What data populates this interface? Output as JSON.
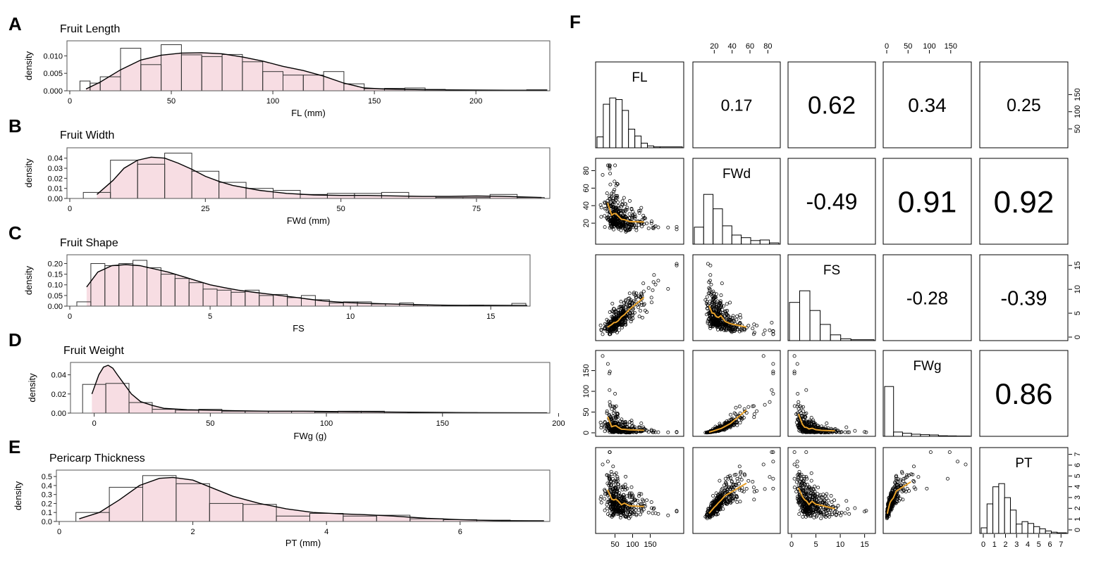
{
  "panel_letters": [
    "A",
    "B",
    "C",
    "D",
    "E",
    "F"
  ],
  "chart_data": [
    {
      "type": "bar",
      "letter": "A",
      "title": "Fruit Length",
      "xlabel": "FL (mm)",
      "ylabel": "density",
      "xlim": [
        0,
        235
      ],
      "ylim": [
        0,
        0.0135
      ],
      "xticks": [
        0,
        50,
        100,
        150,
        200
      ],
      "yticks": [
        0,
        0.005,
        0.01
      ],
      "ytick_labels": [
        "0.000",
        "0.005",
        "0.010"
      ],
      "bin_edges": [
        5,
        10,
        15,
        25,
        35,
        45,
        55,
        65,
        75,
        85,
        95,
        105,
        115,
        125,
        135,
        145,
        155,
        165,
        175,
        185,
        195,
        205,
        215,
        225,
        235
      ],
      "values": [
        0.0028,
        0.0022,
        0.004,
        0.0122,
        0.0075,
        0.0132,
        0.0103,
        0.0098,
        0.0104,
        0.0083,
        0.0055,
        0.0045,
        0.0045,
        0.0055,
        0.002,
        0.0006,
        0.0007,
        0.0008,
        0.0004,
        0.0002,
        0.0001,
        0.0002,
        0.0002,
        0.0003
      ],
      "density": {
        "x": [
          8,
          15,
          25,
          35,
          45,
          55,
          65,
          75,
          85,
          95,
          105,
          115,
          125,
          135,
          145,
          155,
          175,
          200,
          235
        ],
        "y": [
          0.0005,
          0.0025,
          0.006,
          0.0088,
          0.0102,
          0.0108,
          0.0109,
          0.0106,
          0.0097,
          0.0085,
          0.007,
          0.0058,
          0.0042,
          0.0022,
          0.0008,
          0.0005,
          0.0003,
          0.0002,
          0.0001
        ]
      }
    },
    {
      "type": "bar",
      "letter": "B",
      "title": "Fruit Width",
      "xlabel": "FWd (mm)",
      "ylabel": "density",
      "xlim": [
        0,
        88
      ],
      "ylim": [
        0,
        0.0475
      ],
      "xticks": [
        0,
        25,
        50,
        75
      ],
      "yticks": [
        0,
        0.01,
        0.02,
        0.03,
        0.04
      ],
      "ytick_labels": [
        "0.00",
        "0.01",
        "0.02",
        "0.03",
        "0.04"
      ],
      "bin_edges": [
        2.5,
        7.5,
        12.5,
        17.5,
        22.5,
        27.5,
        32.5,
        37.5,
        42.5,
        47.5,
        52.5,
        57.5,
        62.5,
        67.5,
        72.5,
        77.5,
        82.5,
        87.5
      ],
      "values": [
        0.006,
        0.038,
        0.034,
        0.045,
        0.027,
        0.016,
        0.01,
        0.008,
        0.004,
        0.005,
        0.005,
        0.006,
        0.002,
        0.001,
        0.001,
        0.004,
        0.001
      ],
      "density": {
        "x": [
          5,
          8,
          10,
          12.5,
          15,
          17.5,
          20,
          22.5,
          25,
          27.5,
          30,
          35,
          40,
          45,
          50,
          55,
          60,
          65,
          70,
          75,
          80,
          87
        ],
        "y": [
          0.004,
          0.018,
          0.03,
          0.038,
          0.041,
          0.04,
          0.035,
          0.029,
          0.022,
          0.017,
          0.013,
          0.008,
          0.005,
          0.0035,
          0.003,
          0.003,
          0.0025,
          0.002,
          0.002,
          0.0025,
          0.002,
          0.001
        ]
      }
    },
    {
      "type": "bar",
      "letter": "C",
      "title": "Fruit Shape",
      "xlabel": "FS",
      "ylabel": "density",
      "xlim": [
        0,
        16.3
      ],
      "ylim": [
        0,
        0.228
      ],
      "xticks": [
        0,
        5,
        10,
        15
      ],
      "yticks": [
        0,
        0.05,
        0.1,
        0.15,
        0.2
      ],
      "ytick_labels": [
        "0.00",
        "0.05",
        "0.10",
        "0.15",
        "0.20"
      ],
      "bin_edges": [
        0.25,
        0.75,
        1.25,
        1.75,
        2.25,
        2.75,
        3.25,
        3.75,
        4.25,
        4.75,
        5.25,
        5.75,
        6.25,
        6.75,
        7.25,
        7.75,
        8.25,
        8.75,
        9.25,
        9.75,
        10.25,
        10.75,
        11.25,
        11.75,
        12.25,
        12.75,
        13.25,
        13.75,
        14.25,
        14.75,
        15.25,
        15.75,
        16.25
      ],
      "values": [
        0.02,
        0.2,
        0.19,
        0.2,
        0.215,
        0.18,
        0.15,
        0.13,
        0.11,
        0.08,
        0.075,
        0.065,
        0.075,
        0.05,
        0.055,
        0.04,
        0.05,
        0.03,
        0.015,
        0.02,
        0.02,
        0.01,
        0.01,
        0.015,
        0.005,
        0.005,
        0.003,
        0.003,
        0.005,
        0.003,
        0.002,
        0.013
      ],
      "density": {
        "x": [
          0.6,
          1,
          1.5,
          2,
          2.5,
          3,
          3.5,
          4,
          4.5,
          5,
          5.5,
          6,
          6.5,
          7,
          7.5,
          8,
          8.5,
          9,
          9.5,
          10,
          11,
          12,
          13,
          14,
          15,
          16.3
        ],
        "y": [
          0.09,
          0.16,
          0.19,
          0.195,
          0.19,
          0.175,
          0.16,
          0.14,
          0.12,
          0.1,
          0.087,
          0.075,
          0.066,
          0.058,
          0.05,
          0.042,
          0.033,
          0.025,
          0.02,
          0.016,
          0.012,
          0.008,
          0.005,
          0.004,
          0.004,
          0.003
        ]
      }
    },
    {
      "type": "bar",
      "letter": "D",
      "title": "Fruit Weight",
      "xlabel": "FWg (g)",
      "ylabel": "density",
      "xlim": [
        -9,
        195
      ],
      "ylim": [
        0,
        0.05
      ],
      "xticks": [
        0,
        50,
        100,
        150,
        200
      ],
      "yticks": [
        0,
        0.02,
        0.04
      ],
      "ytick_labels": [
        "0.00",
        "0.02",
        "0.04"
      ],
      "bin_edges": [
        -5,
        5,
        15,
        25,
        35,
        45,
        55,
        65,
        75,
        85,
        95,
        105,
        115,
        125,
        135,
        145,
        155,
        165,
        175,
        185,
        195
      ],
      "values": [
        0.03,
        0.031,
        0.011,
        0.004,
        0.003,
        0.004,
        0.002,
        0.002,
        0.002,
        0.002,
        0.001,
        0.002,
        0.002,
        0.001,
        0.0005,
        0.0005,
        0.0005,
        0.0003,
        0.0003,
        0.0003
      ],
      "density": {
        "x": [
          -1,
          2,
          4,
          6,
          8,
          10,
          13,
          16,
          20,
          25,
          30,
          40,
          50,
          60,
          75,
          90,
          110,
          130,
          160,
          195
        ],
        "y": [
          0.02,
          0.04,
          0.048,
          0.05,
          0.047,
          0.04,
          0.03,
          0.02,
          0.012,
          0.008,
          0.005,
          0.0035,
          0.003,
          0.0025,
          0.002,
          0.002,
          0.0015,
          0.001,
          0.0005,
          0.0003
        ]
      }
    },
    {
      "type": "bar",
      "letter": "E",
      "title": "Pericarp Thickness",
      "xlabel": "PT (mm)",
      "ylabel": "density",
      "xlim": [
        0,
        7.3
      ],
      "ylim": [
        0,
        0.54
      ],
      "xticks": [
        0,
        2,
        4,
        6
      ],
      "yticks": [
        0,
        0.1,
        0.2,
        0.3,
        0.4,
        0.5
      ],
      "ytick_labels": [
        "0.0",
        "0.1",
        "0.2",
        "0.3",
        "0.4",
        "0.5"
      ],
      "bin_edges": [
        0.25,
        0.75,
        1.25,
        1.75,
        2.25,
        2.75,
        3.25,
        3.75,
        4.25,
        4.75,
        5.25,
        5.75,
        6.25,
        6.75,
        7.25
      ],
      "values": [
        0.1,
        0.38,
        0.51,
        0.42,
        0.2,
        0.19,
        0.06,
        0.09,
        0.06,
        0.07,
        0.03,
        0.02,
        0.015,
        0.01
      ],
      "density": {
        "x": [
          0.3,
          0.6,
          0.9,
          1.2,
          1.5,
          1.7,
          2.0,
          2.3,
          2.6,
          3.0,
          3.4,
          3.8,
          4.2,
          4.6,
          5.0,
          5.5,
          6.0,
          6.5,
          7.25
        ],
        "y": [
          0.03,
          0.1,
          0.24,
          0.4,
          0.48,
          0.49,
          0.46,
          0.37,
          0.28,
          0.2,
          0.14,
          0.1,
          0.085,
          0.075,
          0.06,
          0.035,
          0.02,
          0.01,
          0.005
        ]
      }
    },
    {
      "type": "scatter",
      "letter": "F",
      "description": "scatterplot matrix",
      "variables": [
        "FL",
        "FWd",
        "FS",
        "FWg",
        "PT"
      ],
      "ranges": [
        [
          5,
          235
        ],
        [
          0,
          90
        ],
        [
          0,
          16.5
        ],
        [
          0,
          190
        ],
        [
          0,
          7.3
        ]
      ],
      "correlations": [
        {
          "row": 0,
          "col": 1,
          "label": "0.17",
          "value": 0.17
        },
        {
          "row": 0,
          "col": 2,
          "label": "0.62",
          "value": 0.62
        },
        {
          "row": 0,
          "col": 3,
          "label": "0.34",
          "value": 0.34
        },
        {
          "row": 0,
          "col": 4,
          "label": "0.25",
          "value": 0.25
        },
        {
          "row": 1,
          "col": 2,
          "label": "-0.49",
          "value": -0.49
        },
        {
          "row": 1,
          "col": 3,
          "label": "0.91",
          "value": 0.91
        },
        {
          "row": 1,
          "col": 4,
          "label": "0.92",
          "value": 0.92
        },
        {
          "row": 2,
          "col": 3,
          "label": "-0.28",
          "value": -0.28
        },
        {
          "row": 2,
          "col": 4,
          "label": "-0.39",
          "value": -0.39
        },
        {
          "row": 3,
          "col": 4,
          "label": "0.86",
          "value": 0.86
        }
      ],
      "histograms": [
        {
          "var": "FL",
          "bin_edges": [
            5,
            22,
            39,
            56,
            73,
            90,
            107,
            124,
            141,
            158,
            175,
            235
          ],
          "values": [
            35,
            140,
            160,
            155,
            120,
            60,
            38,
            15,
            6,
            3,
            3
          ]
        },
        {
          "var": "FWd",
          "bin_edges": [
            0,
            10,
            20,
            30,
            40,
            50,
            60,
            70,
            80,
            90
          ],
          "values": [
            65,
            190,
            135,
            70,
            35,
            25,
            14,
            16,
            5
          ]
        },
        {
          "var": "FS",
          "bin_edges": [
            0,
            2,
            4,
            6,
            8,
            10,
            12,
            16.5
          ],
          "values": [
            165,
            215,
            130,
            70,
            25,
            8,
            4
          ]
        },
        {
          "var": "FWg",
          "bin_edges": [
            0,
            20,
            40,
            60,
            80,
            100,
            120,
            140,
            160,
            190
          ],
          "values": [
            350,
            30,
            22,
            15,
            12,
            10,
            4,
            3,
            2
          ]
        },
        {
          "var": "PT",
          "bin_edges": [
            0,
            0.5,
            1,
            1.5,
            2,
            2.5,
            3,
            3.5,
            4,
            4.5,
            5,
            5.5,
            6,
            6.5,
            7.3
          ],
          "values": [
            18,
            95,
            150,
            160,
            115,
            75,
            30,
            38,
            32,
            22,
            15,
            8,
            4,
            2
          ]
        }
      ],
      "axis_ticks": {
        "top": [
          {
            "col": 1,
            "ticks": [
              20,
              40,
              60,
              80
            ]
          },
          {
            "col": 3,
            "ticks": [
              0,
              50,
              100,
              150
            ]
          }
        ],
        "bottom": [
          {
            "col": 0,
            "ticks": [
              50,
              100,
              150
            ]
          },
          {
            "col": 2,
            "ticks": [
              0,
              5,
              10,
              15
            ]
          },
          {
            "col": 4,
            "ticks": [
              0,
              1,
              2,
              3,
              4,
              5,
              6,
              7
            ]
          }
        ],
        "left": [
          {
            "row": 1,
            "ticks": [
              20,
              40,
              60,
              80
            ]
          },
          {
            "row": 3,
            "ticks": [
              0,
              50,
              100,
              150
            ]
          }
        ],
        "right": [
          {
            "row": 0,
            "ticks": [
              50,
              100,
              150
            ]
          },
          {
            "row": 2,
            "ticks": [
              0,
              5,
              10,
              15
            ]
          },
          {
            "row": 4,
            "ticks": [
              0,
              1,
              2,
              3,
              4,
              5,
              6,
              7
            ]
          }
        ]
      },
      "smoother_color": "#e8a12a",
      "point_color": "#000000"
    }
  ],
  "colors": {
    "hist_fill": "#f7dde3",
    "hist_edge": "#333333",
    "density_line": "#000000",
    "frame": "#555555",
    "smoother": "#e8a12a"
  }
}
